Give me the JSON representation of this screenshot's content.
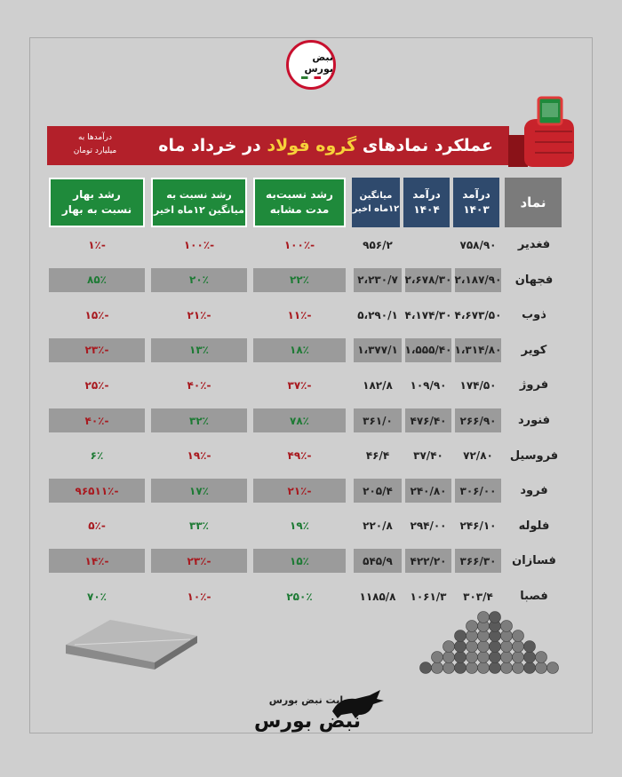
{
  "brand": {
    "logo_text": "نبض بورس",
    "footer_caption": "سایت نبض بورس",
    "footer_logo": "نبض بورس"
  },
  "title": {
    "prefix": "عملکرد نمادهای",
    "highlight": "گروه فولاد",
    "suffix": "در خرداد ماه",
    "unit_line1": "درآمدها به",
    "unit_line2": "میلیارد تومان"
  },
  "headers": {
    "symbol": "نماد",
    "rev1403_1": "درآمد",
    "rev1403_2": "۱۴۰۳",
    "rev1404_1": "درآمد",
    "rev1404_2": "۱۴۰۴",
    "avg_1": "میانگین",
    "avg_2": "۱۲ماه اخیر",
    "growth_same_1": "رشد نسبت‌به",
    "growth_same_2": "مدت مشابه",
    "growth_avg_1": "رشد نسبت به",
    "growth_avg_2": "میانگین ۱۲ماه اخیر",
    "growth_spring_1": "رشد بهار",
    "growth_spring_2": "نسبت به بهار"
  },
  "rows": [
    {
      "name": "فغدیر",
      "rev1403": "۷۵۸/۹۰",
      "rev1404": "",
      "avg": "۹۵۶/۲",
      "g_same": "-۱۰۰٪",
      "g_avg": "-۱۰۰٪",
      "g_spring": "-۱٪"
    },
    {
      "name": "فجهان",
      "rev1403": "۲،۱۸۷/۹۰",
      "rev1404": "۲،۶۷۸/۳۰",
      "avg": "۲،۲۳۰/۷",
      "g_same": "۲۲٪",
      "g_avg": "۲۰٪",
      "g_spring": "۸۵٪"
    },
    {
      "name": "ذوب",
      "rev1403": "۴،۶۷۳/۵۰",
      "rev1404": "۴،۱۷۴/۳۰",
      "avg": "۵،۲۹۰/۱",
      "g_same": "-۱۱٪",
      "g_avg": "-۲۱٪",
      "g_spring": "-۱۵٪"
    },
    {
      "name": "کویر",
      "rev1403": "۱،۳۱۴/۸۰",
      "rev1404": "۱،۵۵۵/۴۰",
      "avg": "۱،۳۷۷/۱",
      "g_same": "۱۸٪",
      "g_avg": "۱۳٪",
      "g_spring": "-۲۳٪"
    },
    {
      "name": "فروژ",
      "rev1403": "۱۷۴/۵۰",
      "rev1404": "۱۰۹/۹۰",
      "avg": "۱۸۲/۸",
      "g_same": "-۳۷٪",
      "g_avg": "-۴۰٪",
      "g_spring": "-۲۵٪"
    },
    {
      "name": "فنورد",
      "rev1403": "۲۶۶/۹۰",
      "rev1404": "۴۷۶/۴۰",
      "avg": "۳۶۱/۰",
      "g_same": "۷۸٪",
      "g_avg": "۳۲٪",
      "g_spring": "-۴۰٪"
    },
    {
      "name": "فروسیل",
      "rev1403": "۷۲/۸۰",
      "rev1404": "۳۷/۴۰",
      "avg": "۴۶/۴",
      "g_same": "-۴۹٪",
      "g_avg": "-۱۹٪",
      "g_spring": "۶٪"
    },
    {
      "name": "فرود",
      "rev1403": "۳۰۶/۰۰",
      "rev1404": "۲۴۰/۸۰",
      "avg": "۲۰۵/۴",
      "g_same": "-۲۱٪",
      "g_avg": "۱۷٪",
      "g_spring": "-۹۶۵۱۱٪"
    },
    {
      "name": "فلوله",
      "rev1403": "۲۴۶/۱۰",
      "rev1404": "۲۹۴/۰۰",
      "avg": "۲۲۰/۸",
      "g_same": "۱۹٪",
      "g_avg": "۳۳٪",
      "g_spring": "-۵٪"
    },
    {
      "name": "فسازان",
      "rev1403": "۳۶۶/۳۰",
      "rev1404": "۴۲۲/۲۰",
      "avg": "۵۴۵/۹",
      "g_same": "۱۵٪",
      "g_avg": "-۲۳٪",
      "g_spring": "-۱۴٪"
    },
    {
      "name": "فصبا",
      "rev1403": "۳۰۳/۴",
      "rev1404": "۱۰۶۱/۳",
      "avg": "۱۱۸۵/۸",
      "g_same": "۲۵۰٪",
      "g_avg": "-۱۰٪",
      "g_spring": "۷۰٪"
    }
  ],
  "colors": {
    "negative": "#a8191f",
    "positive": "#1d7a34",
    "banner": "#b3202a",
    "green_header": "#1f8a3b",
    "blue_header": "#2f4a6d"
  }
}
